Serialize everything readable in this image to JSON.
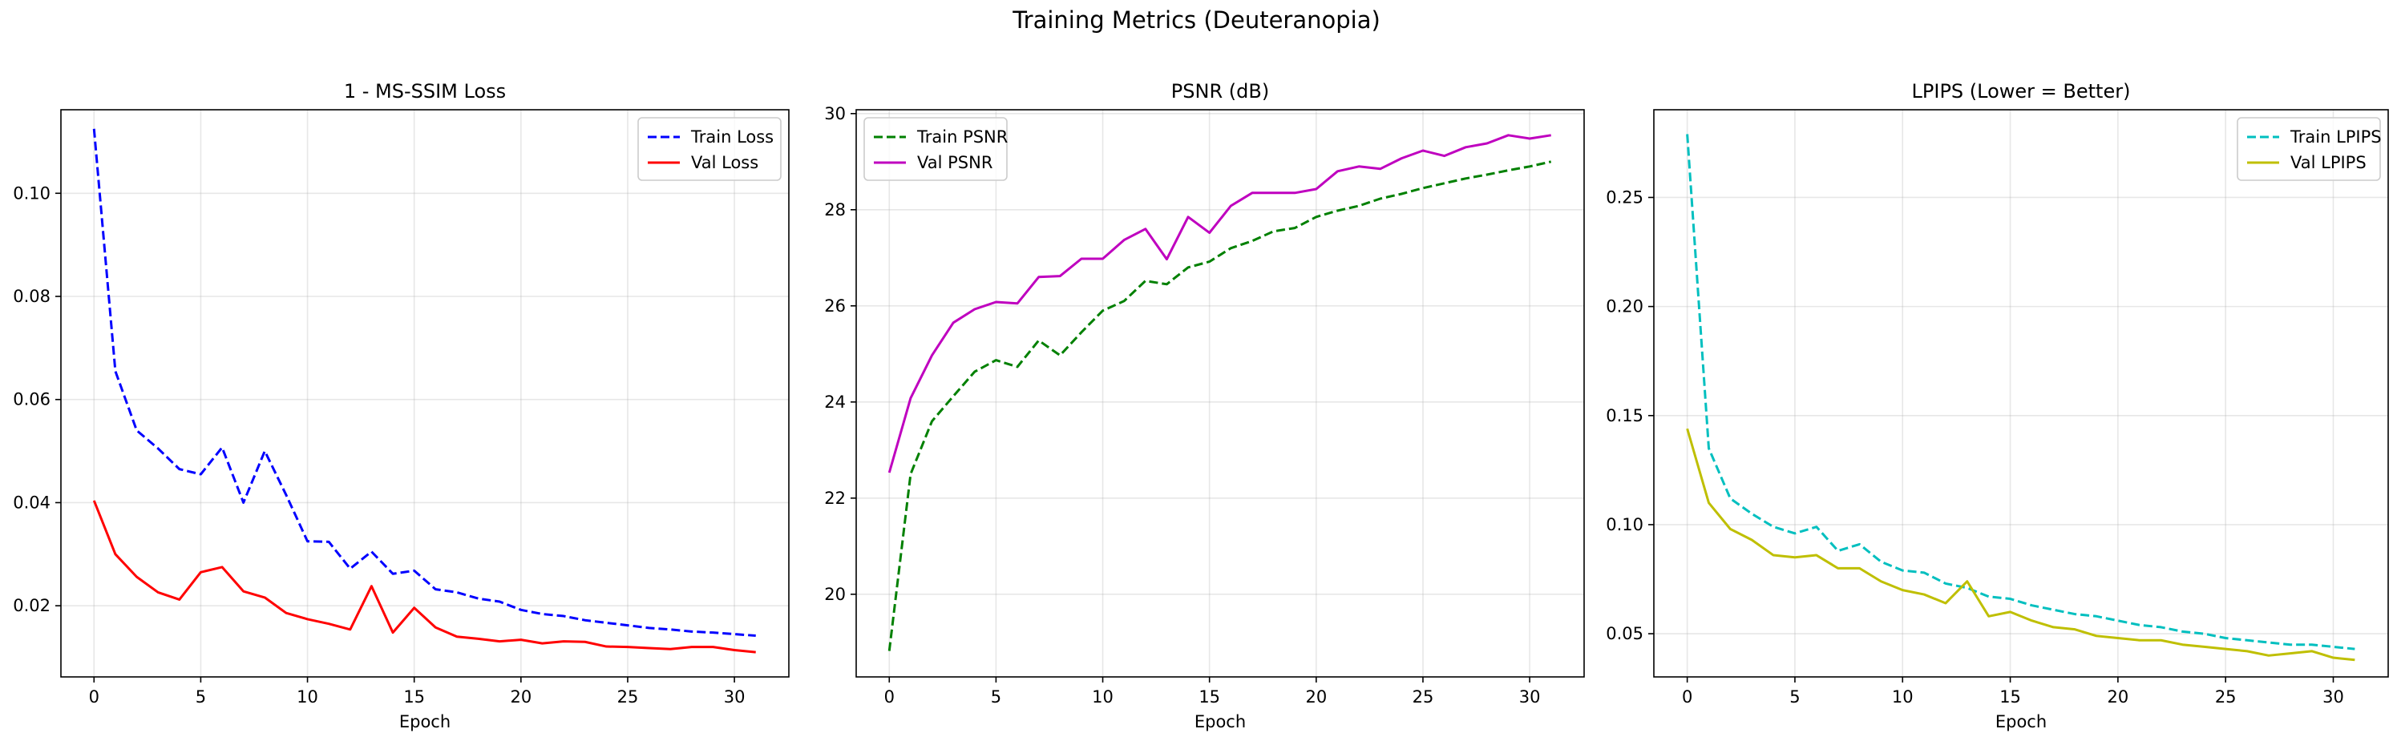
{
  "figure": {
    "title": "Training Metrics (Deuteranopia)"
  },
  "chart_data": [
    {
      "type": "line",
      "title": "1 - MS-SSIM Loss",
      "xlabel": "Epoch",
      "ylabel": "",
      "xlim": [
        -1.55,
        32.55
      ],
      "ylim": [
        0.0062,
        0.1162
      ],
      "xticks": [
        0,
        5,
        10,
        15,
        20,
        25,
        30
      ],
      "yticks": [
        0.02,
        0.04,
        0.06,
        0.08,
        0.1
      ],
      "ytick_labels": [
        "0.02",
        "0.04",
        "0.06",
        "0.08",
        "0.10"
      ],
      "grid": true,
      "legend": "top-right",
      "x": [
        0,
        1,
        2,
        3,
        4,
        5,
        6,
        7,
        8,
        9,
        10,
        11,
        12,
        13,
        14,
        15,
        16,
        17,
        18,
        19,
        20,
        21,
        22,
        23,
        24,
        25,
        26,
        27,
        28,
        29,
        30,
        31
      ],
      "series": [
        {
          "name": "Train Loss",
          "color": "#0000ff",
          "dash": "dashed",
          "values": [
            0.1125,
            0.0655,
            0.054,
            0.0505,
            0.0465,
            0.0455,
            0.0507,
            0.04,
            0.05,
            0.0415,
            0.0325,
            0.0324,
            0.0272,
            0.0305,
            0.0262,
            0.0268,
            0.0232,
            0.0226,
            0.0214,
            0.0208,
            0.0192,
            0.0184,
            0.018,
            0.0172,
            0.0167,
            0.0162,
            0.0157,
            0.0154,
            0.015,
            0.0148,
            0.0145,
            0.0142
          ]
        },
        {
          "name": "Val Loss",
          "color": "#ff0000",
          "dash": "solid",
          "values": [
            0.0404,
            0.03,
            0.0256,
            0.0226,
            0.0212,
            0.0265,
            0.0275,
            0.0228,
            0.0216,
            0.0186,
            0.0174,
            0.0165,
            0.0154,
            0.0238,
            0.0148,
            0.0196,
            0.0158,
            0.014,
            0.0136,
            0.0131,
            0.0134,
            0.0127,
            0.0131,
            0.013,
            0.0121,
            0.012,
            0.0118,
            0.0116,
            0.012,
            0.012,
            0.0114,
            0.011
          ]
        }
      ]
    },
    {
      "type": "line",
      "title": "PSNR (dB)",
      "xlabel": "Epoch",
      "ylabel": "",
      "xlim": [
        -1.55,
        32.55
      ],
      "ylim": [
        18.28,
        30.08
      ],
      "xticks": [
        0,
        5,
        10,
        15,
        20,
        25,
        30
      ],
      "yticks": [
        20,
        22,
        24,
        26,
        28,
        30
      ],
      "ytick_labels": [
        "20",
        "22",
        "24",
        "26",
        "28",
        "30"
      ],
      "grid": true,
      "legend": "top-left",
      "x": [
        0,
        1,
        2,
        3,
        4,
        5,
        6,
        7,
        8,
        9,
        10,
        11,
        12,
        13,
        14,
        15,
        16,
        17,
        18,
        19,
        20,
        21,
        22,
        23,
        24,
        25,
        26,
        27,
        28,
        29,
        30,
        31
      ],
      "series": [
        {
          "name": "Train PSNR",
          "color": "#008000",
          "dash": "dashed",
          "values": [
            18.82,
            22.5,
            23.6,
            24.12,
            24.63,
            24.87,
            24.73,
            25.28,
            24.97,
            25.45,
            25.9,
            26.1,
            26.52,
            26.45,
            26.8,
            26.92,
            27.2,
            27.35,
            27.55,
            27.62,
            27.85,
            27.98,
            28.08,
            28.23,
            28.33,
            28.45,
            28.55,
            28.65,
            28.73,
            28.82,
            28.9,
            29.0
          ]
        },
        {
          "name": "Val PSNR",
          "color": "#bf00bf",
          "dash": "solid",
          "values": [
            22.53,
            24.08,
            24.97,
            25.65,
            25.93,
            26.08,
            26.05,
            26.6,
            26.62,
            26.98,
            26.98,
            27.37,
            27.6,
            26.97,
            27.85,
            27.52,
            28.08,
            28.35,
            28.35,
            28.35,
            28.43,
            28.8,
            28.9,
            28.85,
            29.07,
            29.23,
            29.12,
            29.3,
            29.38,
            29.55,
            29.48,
            29.55
          ]
        }
      ]
    },
    {
      "type": "line",
      "title": "LPIPS (Lower = Better)",
      "xlabel": "Epoch",
      "ylabel": "",
      "xlim": [
        -1.55,
        32.55
      ],
      "ylim": [
        0.0302,
        0.2902
      ],
      "xticks": [
        0,
        5,
        10,
        15,
        20,
        25,
        30
      ],
      "yticks": [
        0.05,
        0.1,
        0.15,
        0.2,
        0.25
      ],
      "ytick_labels": [
        "0.05",
        "0.10",
        "0.15",
        "0.20",
        "0.25"
      ],
      "grid": true,
      "legend": "top-right",
      "x": [
        0,
        1,
        2,
        3,
        4,
        5,
        6,
        7,
        8,
        9,
        10,
        11,
        12,
        13,
        14,
        15,
        16,
        17,
        18,
        19,
        20,
        21,
        22,
        23,
        24,
        25,
        26,
        27,
        28,
        29,
        30,
        31
      ],
      "series": [
        {
          "name": "Train LPIPS",
          "color": "#00bfbf",
          "dash": "dashed",
          "values": [
            0.279,
            0.135,
            0.112,
            0.105,
            0.099,
            0.096,
            0.099,
            0.088,
            0.091,
            0.083,
            0.079,
            0.078,
            0.073,
            0.071,
            0.067,
            0.066,
            0.063,
            0.061,
            0.059,
            0.058,
            0.056,
            0.054,
            0.053,
            0.051,
            0.05,
            0.048,
            0.047,
            0.046,
            0.045,
            0.045,
            0.044,
            0.043
          ]
        },
        {
          "name": "Val LPIPS",
          "color": "#bfbf00",
          "dash": "solid",
          "values": [
            0.144,
            0.11,
            0.098,
            0.093,
            0.086,
            0.085,
            0.086,
            0.08,
            0.08,
            0.074,
            0.07,
            0.068,
            0.064,
            0.074,
            0.058,
            0.06,
            0.056,
            0.053,
            0.052,
            0.049,
            0.048,
            0.047,
            0.047,
            0.045,
            0.044,
            0.043,
            0.042,
            0.04,
            0.041,
            0.042,
            0.039,
            0.038
          ]
        }
      ]
    }
  ]
}
